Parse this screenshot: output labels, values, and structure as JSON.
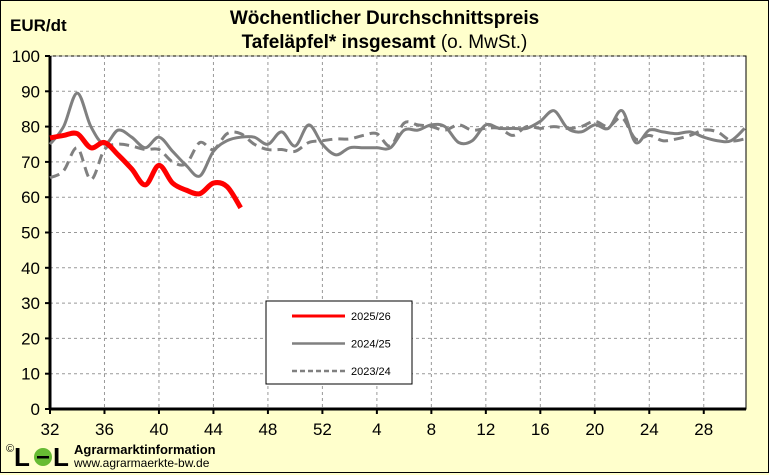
{
  "chart_data": {
    "type": "line",
    "title": "Wöchentlicher Durchschnittspreis",
    "subtitle_bold": "Tafeläpfel* insgesamt",
    "subtitle_normal": "(o. MwSt.)",
    "ylabel": "EUR/dt",
    "xlabel": "",
    "ylim": [
      0,
      100
    ],
    "yticks": [
      0,
      10,
      20,
      30,
      40,
      50,
      60,
      70,
      80,
      90,
      100
    ],
    "x_weeks": [
      32,
      33,
      34,
      35,
      36,
      37,
      38,
      39,
      40,
      41,
      42,
      43,
      44,
      45,
      46,
      47,
      48,
      49,
      50,
      51,
      52,
      1,
      2,
      3,
      4,
      5,
      6,
      7,
      8,
      9,
      10,
      11,
      12,
      13,
      14,
      15,
      16,
      17,
      18,
      19,
      20,
      21,
      22,
      23,
      24,
      25,
      26,
      27,
      28,
      29,
      30,
      31
    ],
    "xtick_labels": [
      "32",
      "36",
      "40",
      "44",
      "48",
      "52",
      "4",
      "8",
      "12",
      "16",
      "20",
      "24",
      "28"
    ],
    "grid": true,
    "legend_placement": "bottom-center",
    "series": [
      {
        "name": "2025/26",
        "color": "#ff0000",
        "style": "solid",
        "values": [
          76.8,
          77.5,
          78,
          74,
          75.5,
          72,
          68,
          63.5,
          69,
          64,
          62,
          61,
          64,
          63,
          57
        ]
      },
      {
        "name": "2024/25",
        "color": "#808080",
        "style": "solid",
        "values": [
          75,
          80,
          89.5,
          80,
          75,
          79,
          77,
          74,
          77,
          73,
          69,
          66,
          73,
          76,
          77,
          77,
          75,
          78.5,
          74.5,
          80.5,
          75,
          72,
          74,
          74,
          74,
          74,
          79,
          79,
          80.5,
          80,
          75.5,
          76,
          80.5,
          79.5,
          79.5,
          79.5,
          81.5,
          84.5,
          79.5,
          78.5,
          80.5,
          79.5,
          84.5,
          75.5,
          79,
          78.5,
          78,
          78.5,
          77,
          76,
          76,
          79.5
        ]
      },
      {
        "name": "2023/24",
        "color": "#808080",
        "style": "dashed",
        "values": [
          65.5,
          67.5,
          74,
          65,
          73.5,
          75,
          74.5,
          73.5,
          73.5,
          70,
          69.5,
          75.5,
          73.5,
          78,
          78,
          75,
          73.5,
          73.5,
          73,
          75.5,
          76,
          76.5,
          76.5,
          77.5,
          78,
          74.5,
          81,
          80.5,
          80,
          79,
          80.5,
          79,
          79.5,
          79.5,
          77.5,
          80,
          79.5,
          80,
          79.5,
          80,
          81.5,
          80,
          82.5,
          76.5,
          77.5,
          76,
          76.5,
          77.5,
          79,
          78.5,
          76,
          76.5
        ]
      }
    ]
  },
  "footer": {
    "copyright": "©",
    "logo_text": "LEL",
    "organization": "Agrarmarktinformation",
    "url": "www.agrarmaerkte-bw.de"
  },
  "colors": {
    "background": "#ffffcc",
    "plot": "#ffffff",
    "grid": "#999999"
  }
}
